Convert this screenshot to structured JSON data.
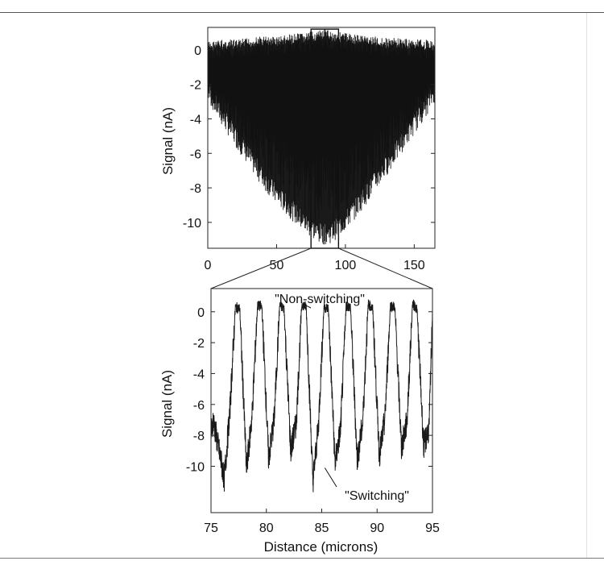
{
  "chart_data": [
    {
      "type": "line",
      "title": "",
      "xlabel": "",
      "ylabel": "Signal (nA)",
      "xlim": [
        0,
        165
      ],
      "ylim": [
        -11.5,
        1.3
      ],
      "xticks": [
        0,
        50,
        100,
        150
      ],
      "yticks": [
        0,
        -2,
        -4,
        -6,
        -8,
        -10
      ],
      "x_tick_labels": [
        "0",
        "50",
        "100",
        "150"
      ],
      "y_tick_labels": [
        "0",
        "-2",
        "-4",
        "-6",
        "-8",
        "-10"
      ],
      "grid": false,
      "series": [
        {
          "color": "#1a1a1a",
          "x": [
            0,
            10,
            20,
            30,
            40,
            50,
            60,
            70,
            80,
            85,
            90,
            100,
            110,
            120,
            130,
            140,
            150,
            160,
            165
          ],
          "upper_envelope": [
            0.5,
            0.6,
            0.6,
            0.7,
            0.8,
            0.8,
            0.9,
            1.0,
            1.1,
            1.2,
            1.1,
            1.0,
            0.9,
            0.8,
            0.7,
            0.7,
            0.6,
            0.6,
            0.5
          ],
          "lower_envelope": [
            -3.0,
            -4.4,
            -5.6,
            -6.8,
            -8.0,
            -9.0,
            -9.8,
            -10.6,
            -11.2,
            -11.3,
            -11.2,
            -10.5,
            -9.5,
            -8.4,
            -7.3,
            -6.1,
            -4.9,
            -3.7,
            -3.0
          ]
        }
      ],
      "highlight_region": {
        "x": [
          75,
          95
        ],
        "y": [
          -11.5,
          1.2
        ]
      }
    },
    {
      "type": "line",
      "title": "",
      "xlabel": "Distance (microns)",
      "ylabel": "Signal (nA)",
      "xlim": [
        75,
        95
      ],
      "ylim": [
        -13,
        1.5
      ],
      "xticks": [
        75,
        80,
        85,
        90,
        95
      ],
      "yticks": [
        0,
        -2,
        -4,
        -6,
        -8,
        -10
      ],
      "x_tick_labels": [
        "75",
        "80",
        "85",
        "90",
        "95"
      ],
      "y_tick_labels": [
        "0",
        "-2",
        "-4",
        "-6",
        "-8",
        "-10"
      ],
      "grid": false,
      "series": [
        {
          "color": "#1a1a1a",
          "period_microns": 2.0,
          "high_level": 0.2,
          "low_level": -7.8,
          "x": [
            75.0,
            75.2,
            75.6,
            76.2,
            76.7,
            77.2,
            77.6,
            78.2,
            78.7,
            79.2,
            79.6,
            80.2,
            80.7,
            81.2,
            81.6,
            82.2,
            82.7,
            83.2,
            83.6,
            84.2,
            84.7,
            85.2,
            85.6,
            86.2,
            86.7,
            87.2,
            87.6,
            88.2,
            88.7,
            89.2,
            89.6,
            90.2,
            90.7,
            91.2,
            91.6,
            92.2,
            92.7,
            93.2,
            93.6,
            94.2,
            94.7,
            95.0
          ],
          "y": [
            -8.0,
            -7.0,
            -8.5,
            -10.8,
            -6.5,
            0.3,
            0.2,
            -10.2,
            -6.8,
            0.4,
            0.3,
            -9.5,
            -7.0,
            0.4,
            0.2,
            -9.0,
            -7.2,
            0.5,
            0.3,
            -11.0,
            -7.4,
            0.3,
            0.2,
            -9.8,
            -7.6,
            0.4,
            0.3,
            -9.6,
            -7.2,
            0.5,
            0.2,
            -9.3,
            -7.0,
            0.4,
            0.3,
            -8.8,
            -7.1,
            0.5,
            0.2,
            -8.7,
            -7.5,
            0.1
          ]
        }
      ],
      "annotations": [
        {
          "text": "\"Non-switching\"",
          "target": [
            83.0,
            0.3
          ]
        },
        {
          "text": "\"Switching\"",
          "target": [
            85.5,
            -10.0
          ]
        }
      ]
    }
  ]
}
